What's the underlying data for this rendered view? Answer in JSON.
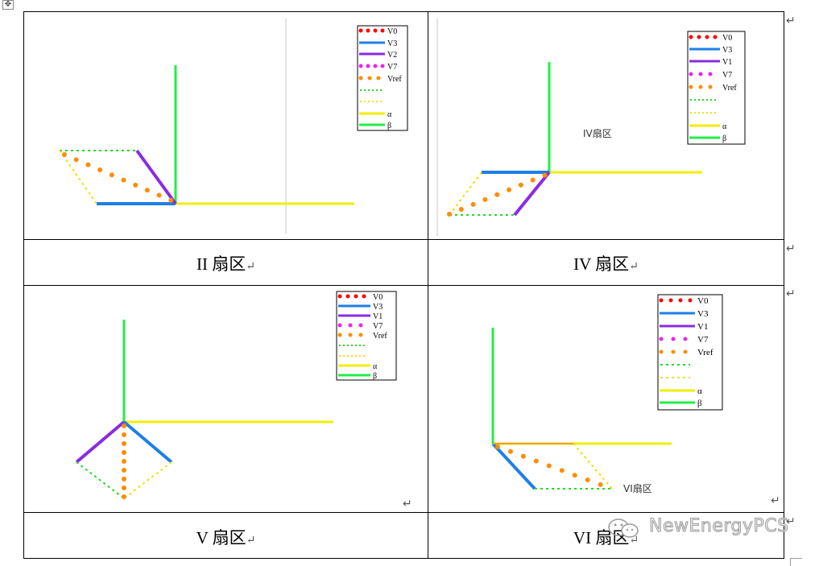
{
  "legend_alpha": "α",
  "legend_beta": "β",
  "panels": [
    {
      "legend": [
        "V0",
        "V3",
        "V2",
        "V7",
        "Vref"
      ],
      "inner_label": ""
    },
    {
      "legend": [
        "V0",
        "V3",
        "V1",
        "V7",
        "Vref"
      ],
      "inner_label": "IV扇区"
    },
    {
      "legend": [
        "V0",
        "V3",
        "V1",
        "V7",
        "Vref"
      ],
      "inner_label": ""
    },
    {
      "legend": [
        "V0",
        "V3",
        "V1",
        "V7",
        "Vref"
      ],
      "inner_label": "VI扇区"
    }
  ],
  "captions": [
    "II 扇区",
    "IV 扇区",
    "V 扇区",
    "VI 扇区"
  ],
  "return_mark": "↵",
  "move_handle": "✥",
  "watermark": "NewEnergyPCS",
  "colors": {
    "V0": "#ff0000",
    "V3": "#1e7fe6",
    "V2": "#8a2be2",
    "V1": "#8a2be2",
    "V7": "#ee22ee",
    "Vref": "#ff8c00",
    "dot_green": "#22dd22",
    "dot_yellow": "#f0e000",
    "alpha": "#f2ee00",
    "beta": "#22ee44"
  }
}
